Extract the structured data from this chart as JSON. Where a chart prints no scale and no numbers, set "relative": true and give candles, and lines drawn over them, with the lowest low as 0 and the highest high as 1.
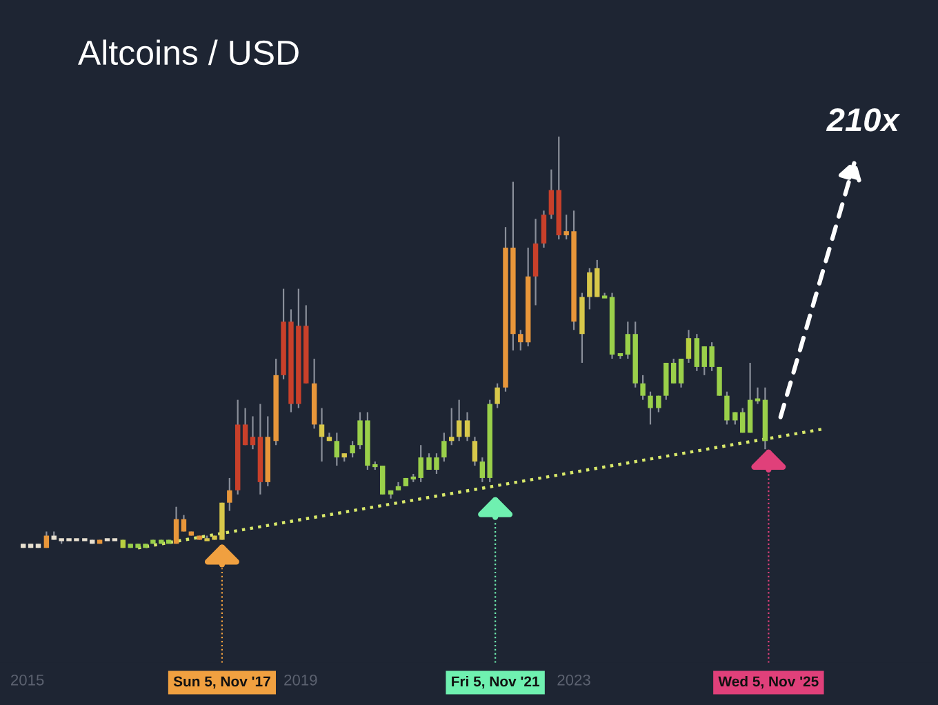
{
  "chart_data": {
    "type": "candlestick",
    "title": "Altcoins / USD",
    "relative": true,
    "x": [
      2014.94,
      2015.05,
      2015.16,
      2015.28,
      2015.39,
      2015.5,
      2015.61,
      2015.72,
      2015.84,
      2015.95,
      2016.06,
      2016.17,
      2016.28,
      2016.4,
      2016.51,
      2016.62,
      2016.73,
      2016.84,
      2016.96,
      2017.07,
      2017.18,
      2017.29,
      2017.4,
      2017.52,
      2017.63,
      2017.74,
      2017.85,
      2017.96,
      2018.08,
      2018.19,
      2018.3,
      2018.41,
      2018.52,
      2018.64,
      2018.75,
      2018.86,
      2018.97,
      2019.08,
      2019.2,
      2019.31,
      2019.42,
      2019.53,
      2019.64,
      2019.76,
      2019.87,
      2019.98,
      2020.09,
      2020.2,
      2020.32,
      2020.43,
      2020.54,
      2020.65,
      2020.76,
      2020.88,
      2020.99,
      2021.1,
      2021.21,
      2021.32,
      2021.44,
      2021.55,
      2021.66,
      2021.77,
      2021.88,
      2022.0,
      2022.11,
      2022.22,
      2022.33,
      2022.44,
      2022.56,
      2022.67,
      2022.78,
      2022.89,
      2023.0,
      2023.12,
      2023.23,
      2023.34,
      2023.45,
      2023.56,
      2023.68,
      2023.79,
      2023.9,
      2024.01,
      2024.12,
      2024.24,
      2024.35,
      2024.46,
      2024.57,
      2024.68,
      2024.8,
      2024.91,
      2025.02,
      2025.13,
      2025.24,
      2025.36,
      2025.47,
      2025.58,
      2025.69,
      2025.8
    ],
    "ohlc": [
      [
        0.0,
        0.01,
        0.0,
        0.01
      ],
      [
        0.0,
        0.01,
        0.0,
        0.01
      ],
      [
        0.0,
        0.01,
        0.0,
        0.01
      ],
      [
        0.0,
        0.04,
        0.0,
        0.03
      ],
      [
        0.02,
        0.04,
        0.02,
        0.03
      ],
      [
        0.02,
        0.02,
        0.01,
        0.02
      ],
      [
        0.02,
        0.02,
        0.02,
        0.02
      ],
      [
        0.02,
        0.02,
        0.02,
        0.02
      ],
      [
        0.02,
        0.02,
        0.02,
        0.02
      ],
      [
        0.01,
        0.02,
        0.01,
        0.02
      ],
      [
        0.01,
        0.02,
        0.01,
        0.02
      ],
      [
        0.02,
        0.02,
        0.02,
        0.02
      ],
      [
        0.02,
        0.02,
        0.02,
        0.02
      ],
      [
        0.0,
        0.02,
        0.0,
        0.02
      ],
      [
        0.0,
        0.01,
        0.0,
        0.01
      ],
      [
        0.0,
        0.01,
        0.0,
        0.01
      ],
      [
        0.0,
        0.01,
        0.0,
        0.01
      ],
      [
        0.01,
        0.02,
        0.01,
        0.02
      ],
      [
        0.01,
        0.02,
        0.01,
        0.02
      ],
      [
        0.01,
        0.02,
        0.01,
        0.02
      ],
      [
        0.01,
        0.1,
        0.01,
        0.07
      ],
      [
        0.04,
        0.08,
        0.04,
        0.07
      ],
      [
        0.03,
        0.04,
        0.03,
        0.04
      ],
      [
        0.02,
        0.03,
        0.02,
        0.03
      ],
      [
        0.02,
        0.03,
        0.02,
        0.02
      ],
      [
        0.02,
        0.03,
        0.02,
        0.03
      ],
      [
        0.02,
        0.11,
        0.02,
        0.11
      ],
      [
        0.11,
        0.17,
        0.09,
        0.14
      ],
      [
        0.14,
        0.36,
        0.13,
        0.3
      ],
      [
        0.25,
        0.34,
        0.25,
        0.3
      ],
      [
        0.25,
        0.32,
        0.24,
        0.27
      ],
      [
        0.16,
        0.35,
        0.13,
        0.27
      ],
      [
        0.16,
        0.32,
        0.15,
        0.27
      ],
      [
        0.26,
        0.46,
        0.25,
        0.42
      ],
      [
        0.42,
        0.63,
        0.41,
        0.55
      ],
      [
        0.35,
        0.58,
        0.33,
        0.55
      ],
      [
        0.35,
        0.63,
        0.34,
        0.54
      ],
      [
        0.4,
        0.59,
        0.4,
        0.54
      ],
      [
        0.3,
        0.46,
        0.29,
        0.4
      ],
      [
        0.27,
        0.34,
        0.21,
        0.3
      ],
      [
        0.26,
        0.28,
        0.26,
        0.27
      ],
      [
        0.22,
        0.28,
        0.2,
        0.26
      ],
      [
        0.22,
        0.23,
        0.21,
        0.23
      ],
      [
        0.23,
        0.26,
        0.22,
        0.25
      ],
      [
        0.25,
        0.33,
        0.24,
        0.31
      ],
      [
        0.2,
        0.33,
        0.19,
        0.31
      ],
      [
        0.2,
        0.21,
        0.19,
        0.2
      ],
      [
        0.13,
        0.2,
        0.13,
        0.2
      ],
      [
        0.13,
        0.14,
        0.12,
        0.14
      ],
      [
        0.14,
        0.16,
        0.14,
        0.15
      ],
      [
        0.15,
        0.17,
        0.15,
        0.17
      ],
      [
        0.17,
        0.18,
        0.16,
        0.17
      ],
      [
        0.17,
        0.25,
        0.16,
        0.22
      ],
      [
        0.19,
        0.23,
        0.19,
        0.22
      ],
      [
        0.19,
        0.23,
        0.18,
        0.22
      ],
      [
        0.22,
        0.28,
        0.21,
        0.26
      ],
      [
        0.26,
        0.34,
        0.25,
        0.27
      ],
      [
        0.27,
        0.36,
        0.26,
        0.31
      ],
      [
        0.27,
        0.33,
        0.26,
        0.31
      ],
      [
        0.21,
        0.27,
        0.2,
        0.26
      ],
      [
        0.17,
        0.22,
        0.16,
        0.21
      ],
      [
        0.17,
        0.36,
        0.16,
        0.35
      ],
      [
        0.35,
        0.4,
        0.34,
        0.39
      ],
      [
        0.39,
        0.78,
        0.38,
        0.73
      ],
      [
        0.52,
        0.89,
        0.48,
        0.73
      ],
      [
        0.5,
        0.53,
        0.48,
        0.52
      ],
      [
        0.5,
        0.73,
        0.49,
        0.66
      ],
      [
        0.66,
        0.8,
        0.59,
        0.74
      ],
      [
        0.74,
        0.82,
        0.73,
        0.81
      ],
      [
        0.81,
        0.92,
        0.8,
        0.87
      ],
      [
        0.76,
        1.0,
        0.75,
        0.87
      ],
      [
        0.76,
        0.81,
        0.75,
        0.77
      ],
      [
        0.55,
        0.82,
        0.53,
        0.77
      ],
      [
        0.52,
        0.62,
        0.45,
        0.61
      ],
      [
        0.61,
        0.68,
        0.58,
        0.67
      ],
      [
        0.61,
        0.7,
        0.61,
        0.68
      ],
      [
        0.61,
        0.62,
        0.61,
        0.61
      ],
      [
        0.47,
        0.62,
        0.46,
        0.61
      ],
      [
        0.47,
        0.47,
        0.46,
        0.47
      ],
      [
        0.47,
        0.55,
        0.46,
        0.52
      ],
      [
        0.4,
        0.55,
        0.39,
        0.52
      ],
      [
        0.37,
        0.42,
        0.36,
        0.4
      ],
      [
        0.34,
        0.38,
        0.3,
        0.37
      ],
      [
        0.34,
        0.37,
        0.33,
        0.37
      ],
      [
        0.37,
        0.45,
        0.36,
        0.45
      ],
      [
        0.4,
        0.46,
        0.4,
        0.45
      ],
      [
        0.4,
        0.46,
        0.39,
        0.46
      ],
      [
        0.46,
        0.53,
        0.45,
        0.51
      ],
      [
        0.44,
        0.52,
        0.43,
        0.51
      ],
      [
        0.44,
        0.49,
        0.42,
        0.49
      ],
      [
        0.44,
        0.5,
        0.43,
        0.49
      ],
      [
        0.37,
        0.44,
        0.37,
        0.44
      ],
      [
        0.31,
        0.38,
        0.3,
        0.37
      ],
      [
        0.31,
        0.33,
        0.3,
        0.33
      ],
      [
        0.28,
        0.34,
        0.28,
        0.33
      ],
      [
        0.28,
        0.45,
        0.28,
        0.36
      ],
      [
        0.36,
        0.39,
        0.35,
        0.36
      ],
      [
        0.26,
        0.39,
        0.24,
        0.36
      ]
    ],
    "colors": [
      "#e8e0d0",
      "#e8e0d0",
      "#e8e0d0",
      "#e8963a",
      "#e8e0d0",
      "#e8e0d0",
      "#e8e0d0",
      "#e8e0d0",
      "#e8e0d0",
      "#e8e0d0",
      "#e8963a",
      "#e8e0d0",
      "#e8e0d0",
      "#b8d040",
      "#9ad04a",
      "#9ad04a",
      "#9ad04a",
      "#9ad04a",
      "#9ad04a",
      "#9ad04a",
      "#e8963a",
      "#e8963a",
      "#e8963a",
      "#e8963a",
      "#d8c84a",
      "#d8c84a",
      "#d8c84a",
      "#e8963a",
      "#c9402a",
      "#c9402a",
      "#c9402a",
      "#c9402a",
      "#e8963a",
      "#e8963a",
      "#c9402a",
      "#c9402a",
      "#c9402a",
      "#c9402a",
      "#e8963a",
      "#d8c84a",
      "#d8c84a",
      "#9ad04a",
      "#d8c84a",
      "#9ad04a",
      "#9ad04a",
      "#9ad04a",
      "#9ad04a",
      "#9ad04a",
      "#9ad04a",
      "#9ad04a",
      "#9ad04a",
      "#9ad04a",
      "#9ad04a",
      "#9ad04a",
      "#9ad04a",
      "#9ad04a",
      "#d8c84a",
      "#d8c84a",
      "#d8c84a",
      "#d8c84a",
      "#9ad04a",
      "#9ad04a",
      "#d8c84a",
      "#e8963a",
      "#e8963a",
      "#e8963a",
      "#e8963a",
      "#c9402a",
      "#c9402a",
      "#c9402a",
      "#c9402a",
      "#e8963a",
      "#e8963a",
      "#d8c84a",
      "#d8c84a",
      "#d8c84a",
      "#9ad04a",
      "#9ad04a",
      "#9ad04a",
      "#9ad04a",
      "#9ad04a",
      "#9ad04a",
      "#9ad04a",
      "#9ad04a",
      "#9ad04a",
      "#9ad04a",
      "#9ad04a",
      "#b8d040",
      "#9ad04a",
      "#9ad04a",
      "#9ad04a",
      "#9ad04a",
      "#9ad04a",
      "#9ad04a",
      "#9ad04a",
      "#9ad04a",
      "#9ad04a",
      "#9ad04a"
    ],
    "series": [
      {
        "type": "line",
        "color": "#d8e86a",
        "line_style": "dotted",
        "x": [
          2016.62,
          2026.68
        ],
        "values": [
          0.0,
          0.29
        ]
      }
    ],
    "xlim": [
      2014.6,
      2028.33
    ],
    "xticks": [
      2015,
      2019,
      2023
    ],
    "ref_lines": [
      {
        "axis": "x",
        "value": 2017.85,
        "label": "Sun 5, Nov '17",
        "color": "#f0a040",
        "line_style": "dotted"
      },
      {
        "axis": "x",
        "value": 2021.85,
        "label": "Fri 5, Nov '21",
        "color": "#6ff0b0",
        "line_style": "dotted"
      },
      {
        "axis": "x",
        "value": 2025.85,
        "label": "Wed 5, Nov '25",
        "color": "#e0407a",
        "line_style": "dotted"
      }
    ],
    "annotations": [
      "210x"
    ]
  }
}
